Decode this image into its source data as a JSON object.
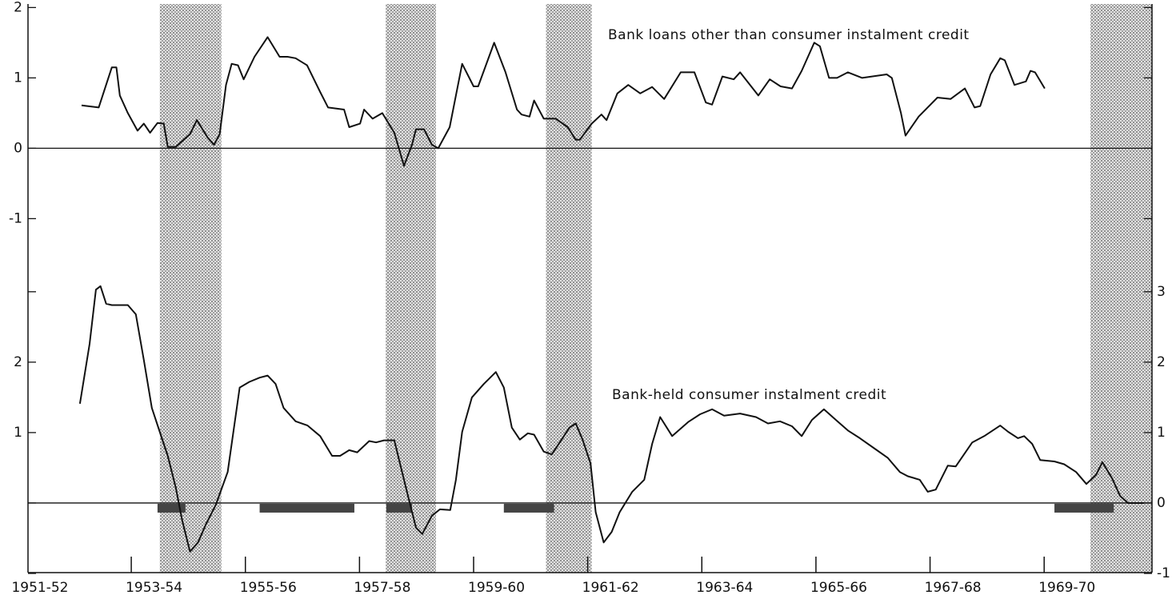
{
  "chart_data": [
    {
      "type": "line",
      "series": [
        {
          "name": "Bank loans other than consumer instalment credit",
          "color": "#111111",
          "x": [
            1952.13,
            1952.43,
            1952.66,
            1952.74,
            1952.8,
            1952.94,
            1953.11,
            1953.22,
            1953.33,
            1953.46,
            1953.57,
            1953.64,
            1953.78,
            1954.03,
            1954.15,
            1954.34,
            1954.45,
            1954.55,
            1954.66,
            1954.76,
            1954.87,
            1954.97,
            1955.16,
            1955.39,
            1955.6,
            1955.74,
            1955.88,
            1956.08,
            1956.31,
            1956.45,
            1956.73,
            1956.82,
            1957.01,
            1957.08,
            1957.23,
            1957.4,
            1957.61,
            1957.78,
            1957.92,
            1957.99,
            1958.13,
            1958.27,
            1958.38,
            1958.58,
            1958.8,
            1959.0,
            1959.08,
            1959.36,
            1959.56,
            1959.76,
            1959.84,
            1959.98,
            1960.06,
            1960.23,
            1960.44,
            1960.65,
            1960.79,
            1960.86,
            1961.07,
            1961.24,
            1961.33,
            1961.52,
            1961.71,
            1961.92,
            1962.13,
            1962.34,
            1962.63,
            1962.87,
            1963.07,
            1963.18,
            1963.36,
            1963.56,
            1963.67,
            1963.99,
            1964.19,
            1964.38,
            1964.58,
            1964.75,
            1964.97,
            1965.07,
            1965.23,
            1965.37,
            1965.56,
            1965.81,
            1966.24,
            1966.33,
            1966.49,
            1966.57,
            1966.8,
            1967.13,
            1967.36,
            1967.61,
            1967.78,
            1967.88,
            1968.06,
            1968.23,
            1968.31,
            1968.48,
            1968.68,
            1968.76,
            1968.84,
            1969.01
          ],
          "values": [
            0.61,
            0.58,
            1.15,
            1.15,
            0.75,
            0.5,
            0.25,
            0.35,
            0.22,
            0.36,
            0.35,
            0.02,
            0.02,
            0.2,
            0.4,
            0.15,
            0.05,
            0.2,
            0.9,
            1.2,
            1.18,
            0.98,
            1.3,
            1.58,
            1.3,
            1.3,
            1.28,
            1.18,
            0.8,
            0.58,
            0.55,
            0.3,
            0.35,
            0.55,
            0.42,
            0.5,
            0.22,
            -0.25,
            0.05,
            0.27,
            0.27,
            0.05,
            0.0,
            0.3,
            1.2,
            0.88,
            0.88,
            1.5,
            1.08,
            0.55,
            0.48,
            0.45,
            0.68,
            0.42,
            0.42,
            0.3,
            0.12,
            0.12,
            0.35,
            0.48,
            0.4,
            0.78,
            0.9,
            0.78,
            0.87,
            0.7,
            1.08,
            1.08,
            0.65,
            0.62,
            1.02,
            0.98,
            1.08,
            0.75,
            0.98,
            0.88,
            0.85,
            1.1,
            1.5,
            1.45,
            1.0,
            1.0,
            1.08,
            1.0,
            1.05,
            1.0,
            0.5,
            0.18,
            0.45,
            0.72,
            0.7,
            0.85,
            0.58,
            0.6,
            1.05,
            1.28,
            1.25,
            0.9,
            0.95,
            1.1,
            1.08,
            0.85
          ]
        }
      ],
      "ylim": [
        -1.2,
        2.05
      ],
      "yticks": [
        -1,
        0,
        1,
        2
      ]
    },
    {
      "type": "line",
      "series": [
        {
          "name": "Bank-held consumer instalment credit",
          "color": "#111111",
          "x": [
            1952.1,
            1952.27,
            1952.38,
            1952.46,
            1952.56,
            1952.66,
            1952.94,
            1953.08,
            1953.22,
            1953.36,
            1953.5,
            1953.64,
            1953.78,
            1953.89,
            1954.03,
            1954.17,
            1954.31,
            1954.48,
            1954.69,
            1954.9,
            1955.07,
            1955.25,
            1955.39,
            1955.53,
            1955.67,
            1955.88,
            1956.09,
            1956.31,
            1956.52,
            1956.66,
            1956.82,
            1956.96,
            1957.17,
            1957.29,
            1957.43,
            1957.61,
            1957.71,
            1957.85,
            1957.99,
            1958.1,
            1958.27,
            1958.41,
            1958.59,
            1958.69,
            1958.8,
            1958.97,
            1959.18,
            1959.39,
            1959.53,
            1959.67,
            1959.81,
            1959.95,
            1960.06,
            1960.23,
            1960.37,
            1960.51,
            1960.68,
            1960.79,
            1960.91,
            1961.05,
            1961.14,
            1961.28,
            1961.42,
            1961.56,
            1961.78,
            1961.99,
            1962.13,
            1962.27,
            1962.48,
            1962.76,
            1962.97,
            1963.18,
            1963.39,
            1963.67,
            1963.95,
            1964.16,
            1964.37,
            1964.58,
            1964.75,
            1964.93,
            1965.14,
            1965.35,
            1965.56,
            1965.77,
            1966.05,
            1966.26,
            1966.47,
            1966.61,
            1966.82,
            1966.96,
            1967.1,
            1967.31,
            1967.45,
            1967.74,
            1967.95,
            1968.23,
            1968.37,
            1968.54,
            1968.65,
            1968.79,
            1968.93,
            1969.18,
            1969.35,
            1969.56,
            1969.74,
            1969.91,
            1970.02,
            1970.19,
            1970.33,
            1970.47,
            1970.75
          ],
          "values": [
            1.41,
            2.26,
            3.03,
            3.08,
            2.83,
            2.81,
            2.81,
            2.68,
            2.03,
            1.35,
            1.01,
            0.67,
            0.22,
            -0.24,
            -0.69,
            -0.56,
            -0.3,
            -0.03,
            0.44,
            1.64,
            1.72,
            1.78,
            1.81,
            1.69,
            1.35,
            1.16,
            1.1,
            0.95,
            0.67,
            0.67,
            0.75,
            0.72,
            0.88,
            0.86,
            0.89,
            0.89,
            0.56,
            0.1,
            -0.35,
            -0.44,
            -0.18,
            -0.09,
            -0.1,
            0.33,
            1.01,
            1.5,
            1.69,
            1.86,
            1.64,
            1.07,
            0.9,
            0.99,
            0.97,
            0.73,
            0.69,
            0.86,
            1.07,
            1.13,
            0.9,
            0.56,
            -0.13,
            -0.56,
            -0.41,
            -0.13,
            0.16,
            0.33,
            0.84,
            1.22,
            0.95,
            1.15,
            1.26,
            1.33,
            1.24,
            1.27,
            1.22,
            1.13,
            1.16,
            1.09,
            0.95,
            1.18,
            1.33,
            1.18,
            1.03,
            0.92,
            0.76,
            0.64,
            0.44,
            0.38,
            0.33,
            0.16,
            0.19,
            0.53,
            0.52,
            0.86,
            0.95,
            1.1,
            1.01,
            0.92,
            0.95,
            0.84,
            0.61,
            0.59,
            0.55,
            0.44,
            0.27,
            0.4,
            0.58,
            0.35,
            0.1,
            0.0,
            0.0
          ]
        }
      ],
      "ylim": [
        -1,
        3.1
      ],
      "yticks": [
        -1,
        0,
        1,
        2,
        3
      ],
      "yticks_left": [
        1,
        2
      ],
      "xlim": [
        1951.19,
        1970.89
      ],
      "xticks": [
        {
          "value": 1951.4,
          "label": "1951-52"
        },
        {
          "value": 1953.4,
          "label": "1953-54"
        },
        {
          "value": 1955.4,
          "label": "1955-56"
        },
        {
          "value": 1957.4,
          "label": "1957-58"
        },
        {
          "value": 1959.4,
          "label": "1959-60"
        },
        {
          "value": 1961.4,
          "label": "1961-62"
        },
        {
          "value": 1963.4,
          "label": "1963-64"
        },
        {
          "value": 1965.4,
          "label": "1965-66"
        },
        {
          "value": 1967.4,
          "label": "1967-68"
        },
        {
          "value": 1969.4,
          "label": "1969-70"
        }
      ],
      "x_minor_ticks": [
        1953,
        1955,
        1957,
        1959,
        1961,
        1963,
        1965,
        1967,
        1969
      ],
      "shaded_periods": [
        [
          1953.5,
          1954.58
        ],
        [
          1957.46,
          1958.34
        ],
        [
          1960.27,
          1961.07
        ],
        [
          1969.81,
          1970.89
        ]
      ],
      "bar_periods": [
        [
          1953.46,
          1953.95
        ],
        [
          1955.25,
          1956.91
        ],
        [
          1957.47,
          1957.92
        ],
        [
          1959.53,
          1960.41
        ],
        [
          1969.18,
          1970.22
        ]
      ]
    }
  ]
}
